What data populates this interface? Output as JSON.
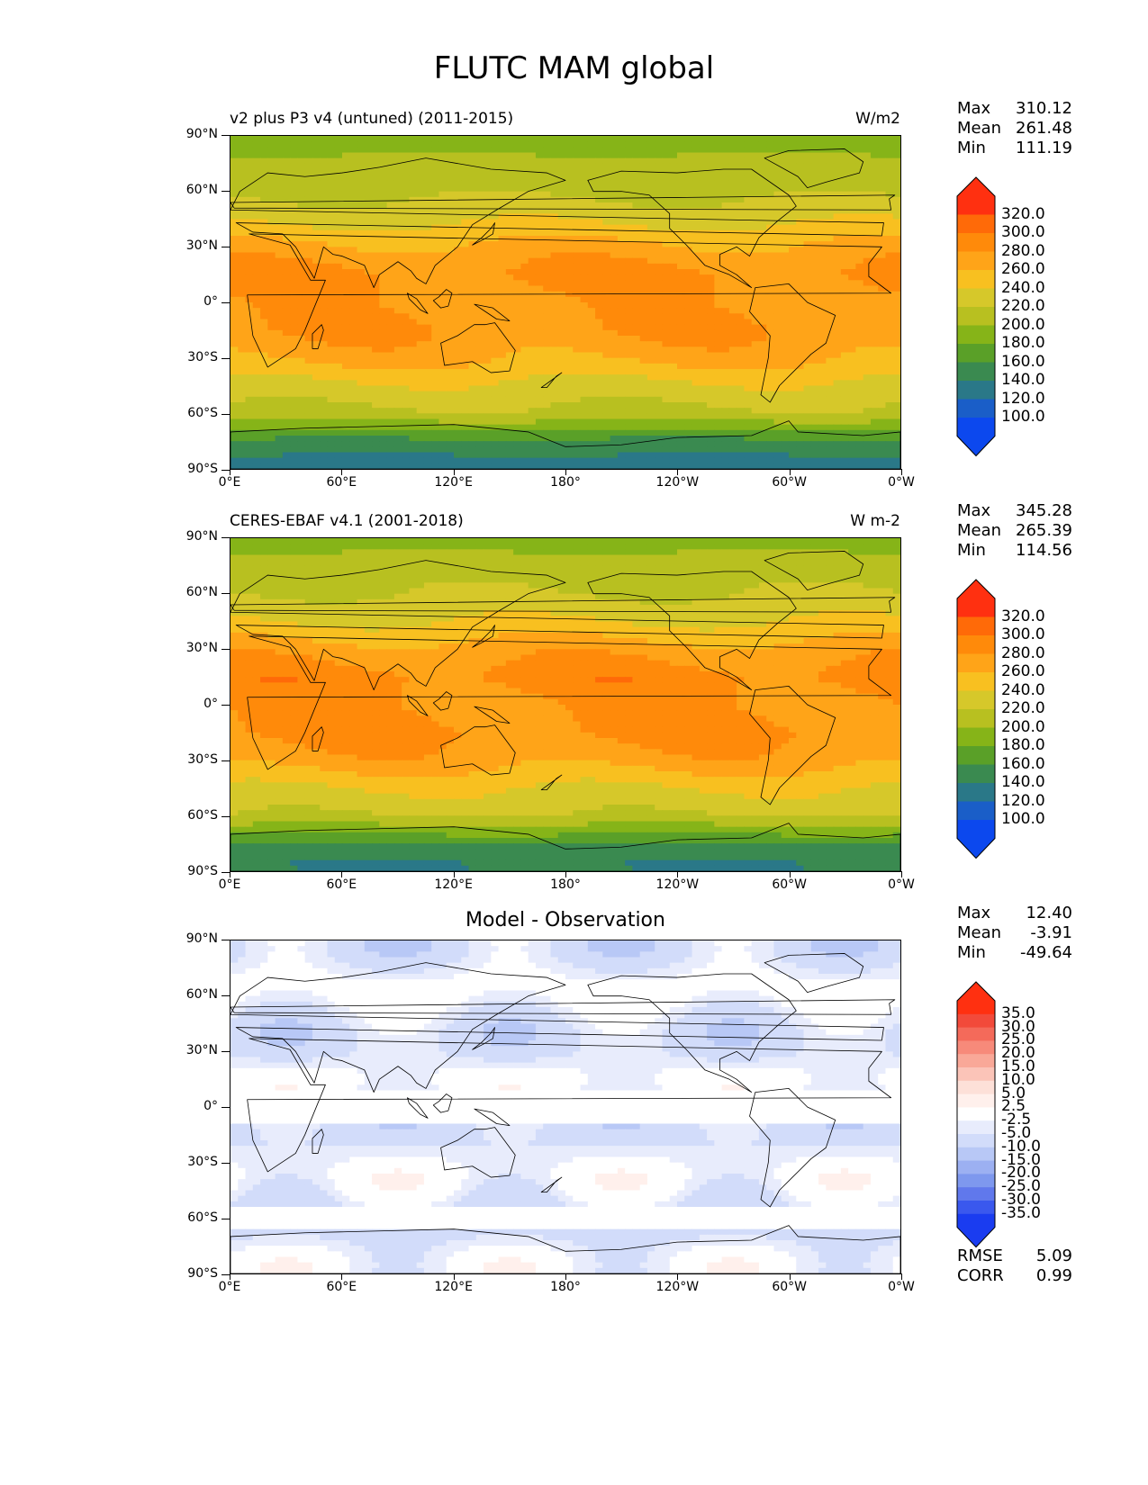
{
  "figure": {
    "title": "FLUTC MAM global"
  },
  "axes": {
    "ylabels": [
      "90°N",
      "60°N",
      "30°N",
      "0°",
      "30°S",
      "60°S",
      "90°S"
    ],
    "xlabels": [
      "0°E",
      "60°E",
      "120°E",
      "180°",
      "120°W",
      "60°W",
      "0°W"
    ]
  },
  "colorbar_main": {
    "labels": [
      "320.0",
      "300.0",
      "280.0",
      "260.0",
      "240.0",
      "220.0",
      "200.0",
      "180.0",
      "160.0",
      "140.0",
      "120.0",
      "100.0"
    ],
    "colors": [
      "#ff3010",
      "#ff6a08",
      "#ff8a0a",
      "#ffa418",
      "#f8c020",
      "#d6c82a",
      "#b8c020",
      "#86b418",
      "#5aa028",
      "#3a8a50",
      "#2a7888",
      "#1a5ec8",
      "#0c48ee"
    ]
  },
  "colorbar_diff": {
    "labels": [
      "35.0",
      "30.0",
      "25.0",
      "20.0",
      "15.0",
      "10.0",
      "5.0",
      "2.5",
      "-2.5",
      "-5.0",
      "-10.0",
      "-15.0",
      "-20.0",
      "-25.0",
      "-30.0",
      "-35.0"
    ],
    "colors": [
      "#ff3010",
      "#f24a3a",
      "#f46a5a",
      "#f78a7a",
      "#f9a898",
      "#fbc4b8",
      "#fde0d8",
      "#fff0ec",
      "#ffffff",
      "#e8ecfc",
      "#d2dcfa",
      "#b8c8f6",
      "#9cb0f2",
      "#7e98ee",
      "#6078ec",
      "#3a58ee",
      "#1a3cf0"
    ]
  },
  "panels": [
    {
      "title_left": "v2 plus P3 v4 (untuned) (2011-2015)",
      "title_right": "W/m2",
      "stats": {
        "max_label": "Max",
        "max": "310.12",
        "mean_label": "Mean",
        "mean": "261.48",
        "min_label": "Min",
        "min": "111.19"
      }
    },
    {
      "title_left": "CERES-EBAF v4.1 (2001-2018)",
      "title_right": "W m-2",
      "stats": {
        "max_label": "Max",
        "max": "345.28",
        "mean_label": "Mean",
        "mean": "265.39",
        "min_label": "Min",
        "min": "114.56"
      }
    },
    {
      "title_center": "Model - Observation",
      "stats": {
        "max_label": "Max",
        "max": "12.40",
        "mean_label": "Mean",
        "mean": "-3.91",
        "min_label": "Min",
        "min": "-49.64"
      },
      "rmse_label": "RMSE",
      "rmse": "5.09",
      "corr_label": "CORR",
      "corr": "0.99"
    }
  ],
  "chart_data": [
    {
      "type": "heatmap",
      "title": "v2 plus P3 v4 (untuned) (2011-2015)",
      "units": "W/m2",
      "xlim": [
        0,
        360
      ],
      "ylim": [
        -90,
        90
      ],
      "levels": [
        100,
        120,
        140,
        160,
        180,
        200,
        220,
        240,
        260,
        280,
        300,
        320
      ],
      "zonal_mean_by_lat": {
        "lat": [
          90,
          75,
          60,
          45,
          30,
          15,
          0,
          -15,
          -30,
          -45,
          -60,
          -75,
          -85
        ],
        "value": [
          190,
          205,
          215,
          235,
          265,
          285,
          275,
          280,
          265,
          235,
          215,
          155,
          135
        ]
      },
      "max": 310.12,
      "mean": 261.48,
      "min": 111.19
    },
    {
      "type": "heatmap",
      "title": "CERES-EBAF v4.1 (2001-2018)",
      "units": "W m-2",
      "xlim": [
        0,
        360
      ],
      "ylim": [
        -90,
        90
      ],
      "levels": [
        100,
        120,
        140,
        160,
        180,
        200,
        220,
        240,
        260,
        280,
        300,
        320
      ],
      "zonal_mean_by_lat": {
        "lat": [
          90,
          75,
          60,
          45,
          30,
          15,
          0,
          -15,
          -30,
          -45,
          -60,
          -75,
          -85
        ],
        "value": [
          190,
          210,
          220,
          240,
          270,
          290,
          280,
          285,
          270,
          240,
          220,
          160,
          140
        ]
      },
      "max": 345.28,
      "mean": 265.39,
      "min": 114.56
    },
    {
      "type": "heatmap",
      "title": "Model - Observation",
      "xlim": [
        0,
        360
      ],
      "ylim": [
        -90,
        90
      ],
      "levels": [
        -35,
        -30,
        -25,
        -20,
        -15,
        -10,
        -5,
        -2.5,
        2.5,
        5,
        10,
        15,
        20,
        25,
        30,
        35
      ],
      "max": 12.4,
      "mean": -3.91,
      "min": -49.64,
      "rmse": 5.09,
      "corr": 0.99
    }
  ]
}
